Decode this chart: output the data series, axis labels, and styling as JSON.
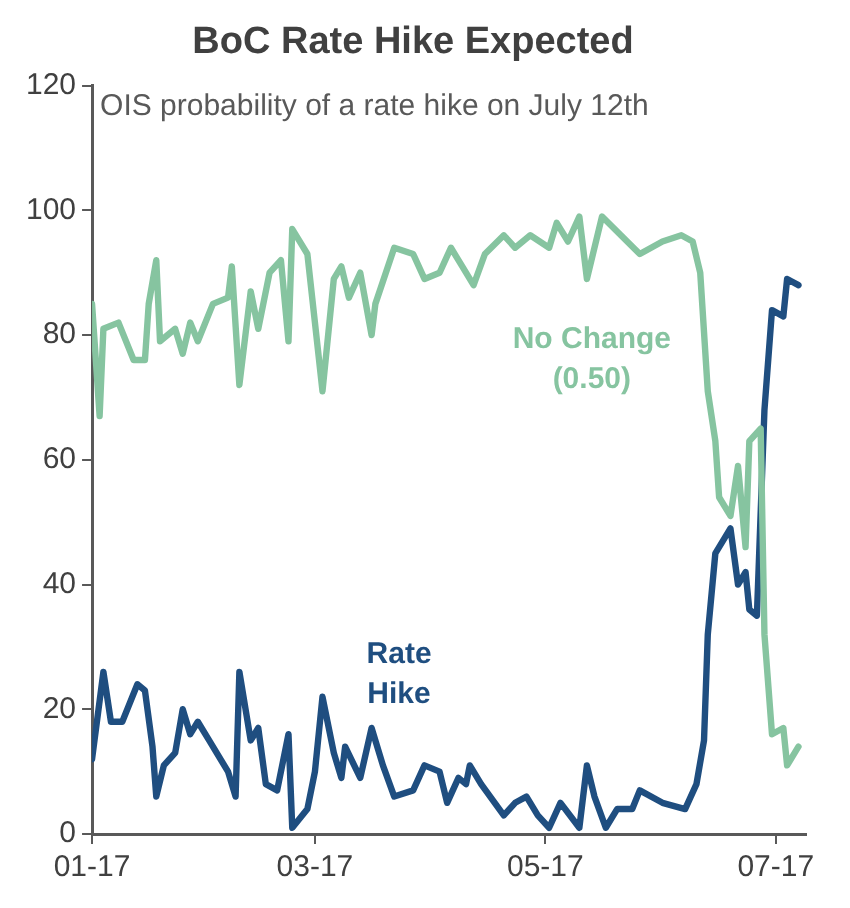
{
  "chart_data": {
    "type": "line",
    "title": "BoC Rate Hike Expected",
    "ylabel": "OIS probability of a rate hike on July 12th",
    "xlim": [
      "2017-01-01",
      "2017-07-09"
    ],
    "xticks": [
      {
        "value": "2017-01-01",
        "label": "01-17"
      },
      {
        "value": "2017-03-01",
        "label": "03-17"
      },
      {
        "value": "2017-05-01",
        "label": "05-17"
      },
      {
        "value": "2017-07-01",
        "label": "07-17"
      }
    ],
    "ylim": [
      0,
      120
    ],
    "yticks": [
      0,
      20,
      40,
      60,
      80,
      100,
      120
    ],
    "grid": false,
    "legend": false,
    "marker": "none",
    "line_style": "solid",
    "series": [
      {
        "name": "No Change (0.50)",
        "color": "#86c4a0",
        "x": [
          "2017-01-01",
          "2017-01-03",
          "2017-01-04",
          "2017-01-08",
          "2017-01-12",
          "2017-01-15",
          "2017-01-16",
          "2017-01-18",
          "2017-01-19",
          "2017-01-23",
          "2017-01-25",
          "2017-01-27",
          "2017-01-29",
          "2017-02-02",
          "2017-02-06",
          "2017-02-07",
          "2017-02-09",
          "2017-02-12",
          "2017-02-14",
          "2017-02-17",
          "2017-02-20",
          "2017-02-22",
          "2017-02-23",
          "2017-02-27",
          "2017-03-03",
          "2017-03-06",
          "2017-03-08",
          "2017-03-10",
          "2017-03-13",
          "2017-03-16",
          "2017-03-17",
          "2017-03-22",
          "2017-03-27",
          "2017-03-30",
          "2017-04-03",
          "2017-04-06",
          "2017-04-09",
          "2017-04-12",
          "2017-04-15",
          "2017-04-20",
          "2017-04-23",
          "2017-04-27",
          "2017-05-02",
          "2017-05-04",
          "2017-05-07",
          "2017-05-10",
          "2017-05-12",
          "2017-05-16",
          "2017-05-21",
          "2017-05-26",
          "2017-06-01",
          "2017-06-06",
          "2017-06-09",
          "2017-06-11",
          "2017-06-13",
          "2017-06-15",
          "2017-06-16",
          "2017-06-19",
          "2017-06-21",
          "2017-06-23",
          "2017-06-24",
          "2017-06-27",
          "2017-06-28",
          "2017-06-30",
          "2017-07-03",
          "2017-07-04",
          "2017-07-07"
        ],
        "values": [
          85,
          67,
          81,
          82,
          76,
          76,
          85,
          92,
          79,
          81,
          77,
          82,
          79,
          85,
          86,
          91,
          72,
          87,
          81,
          90,
          92,
          79,
          97,
          93,
          71,
          89,
          91,
          86,
          90,
          80,
          85,
          94,
          93,
          89,
          90,
          94,
          91,
          88,
          93,
          96,
          94,
          96,
          94,
          98,
          95,
          99,
          89,
          99,
          96,
          93,
          95,
          96,
          95,
          90,
          71,
          63,
          54,
          51,
          59,
          46,
          63,
          65,
          32,
          16,
          17,
          11,
          14
        ]
      },
      {
        "name": "Rate Hike",
        "color": "#1f4e80",
        "x": [
          "2017-01-01",
          "2017-01-04",
          "2017-01-06",
          "2017-01-09",
          "2017-01-13",
          "2017-01-15",
          "2017-01-17",
          "2017-01-18",
          "2017-01-20",
          "2017-01-23",
          "2017-01-25",
          "2017-01-27",
          "2017-01-29",
          "2017-02-01",
          "2017-02-06",
          "2017-02-08",
          "2017-02-09",
          "2017-02-12",
          "2017-02-14",
          "2017-02-16",
          "2017-02-19",
          "2017-02-22",
          "2017-02-23",
          "2017-02-27",
          "2017-03-01",
          "2017-03-03",
          "2017-03-06",
          "2017-03-08",
          "2017-03-09",
          "2017-03-13",
          "2017-03-16",
          "2017-03-19",
          "2017-03-22",
          "2017-03-27",
          "2017-03-30",
          "2017-04-03",
          "2017-04-05",
          "2017-04-08",
          "2017-04-10",
          "2017-04-11",
          "2017-04-14",
          "2017-04-20",
          "2017-04-23",
          "2017-04-26",
          "2017-04-29",
          "2017-05-02",
          "2017-05-05",
          "2017-05-10",
          "2017-05-12",
          "2017-05-14",
          "2017-05-17",
          "2017-05-20",
          "2017-05-24",
          "2017-05-26",
          "2017-06-01",
          "2017-06-07",
          "2017-06-10",
          "2017-06-12",
          "2017-06-13",
          "2017-06-15",
          "2017-06-19",
          "2017-06-21",
          "2017-06-23",
          "2017-06-24",
          "2017-06-26",
          "2017-06-28",
          "2017-06-30",
          "2017-07-03",
          "2017-07-04",
          "2017-07-07"
        ],
        "values": [
          12,
          26,
          18,
          18,
          24,
          23,
          14,
          6,
          11,
          13,
          20,
          16,
          18,
          15,
          10,
          6,
          26,
          15,
          17,
          8,
          7,
          16,
          1,
          4,
          10,
          22,
          13,
          9,
          14,
          9,
          17,
          11,
          6,
          7,
          11,
          10,
          5,
          9,
          8,
          11,
          8,
          3,
          5,
          6,
          3,
          1,
          5,
          1,
          11,
          6,
          1,
          4,
          4,
          7,
          5,
          4,
          8,
          15,
          32,
          45,
          49,
          40,
          42,
          36,
          35,
          68,
          84,
          83,
          89,
          88
        ]
      }
    ]
  }
}
